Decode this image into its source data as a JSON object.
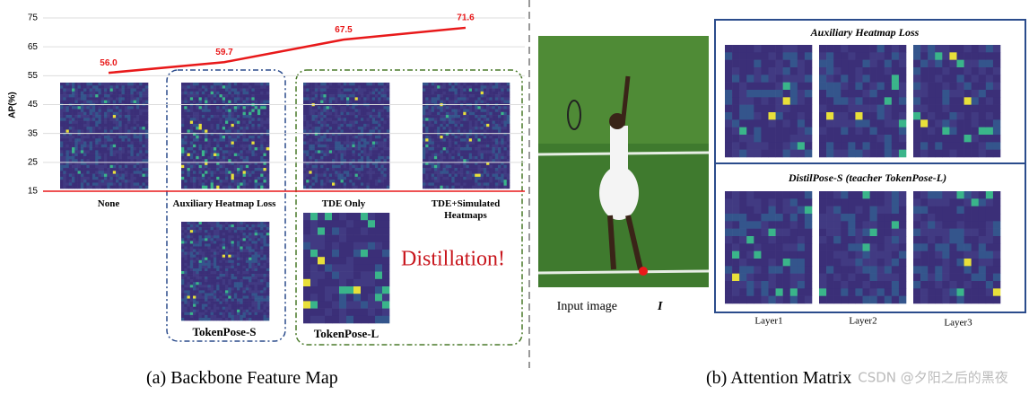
{
  "chart_data": {
    "type": "line",
    "y_label": "AP(%)",
    "categories": [
      "None",
      "Auxiliary Heatmap Loss",
      "TDE Only",
      "TDE+Simulated Heatmaps"
    ],
    "values": [
      56.0,
      59.7,
      67.5,
      71.6
    ],
    "value_labels": [
      "56.0",
      "59.7",
      "67.5",
      "71.6"
    ],
    "color": "#e8191a",
    "ylim": [
      15,
      75
    ],
    "yticks": [
      15,
      25,
      35,
      45,
      55,
      65,
      75
    ],
    "grid": true
  },
  "figure": {
    "student_label": "TokenPose-S",
    "teacher_label": "TokenPose-L",
    "distillation": "Distillation!",
    "caption_a": "(a) Backbone Feature Map",
    "caption_b": "(b) Attention Matrix",
    "input_label": "Input image",
    "input_symbol": "I",
    "attn_title_1": "Auxiliary Heatmap Loss",
    "attn_title_2": "DistilPose-S (teacher TokenPose-L)",
    "layers": [
      "Layer1",
      "Layer2",
      "Layer3"
    ],
    "watermark": "CSDN @夕阳之后的黑夜"
  }
}
